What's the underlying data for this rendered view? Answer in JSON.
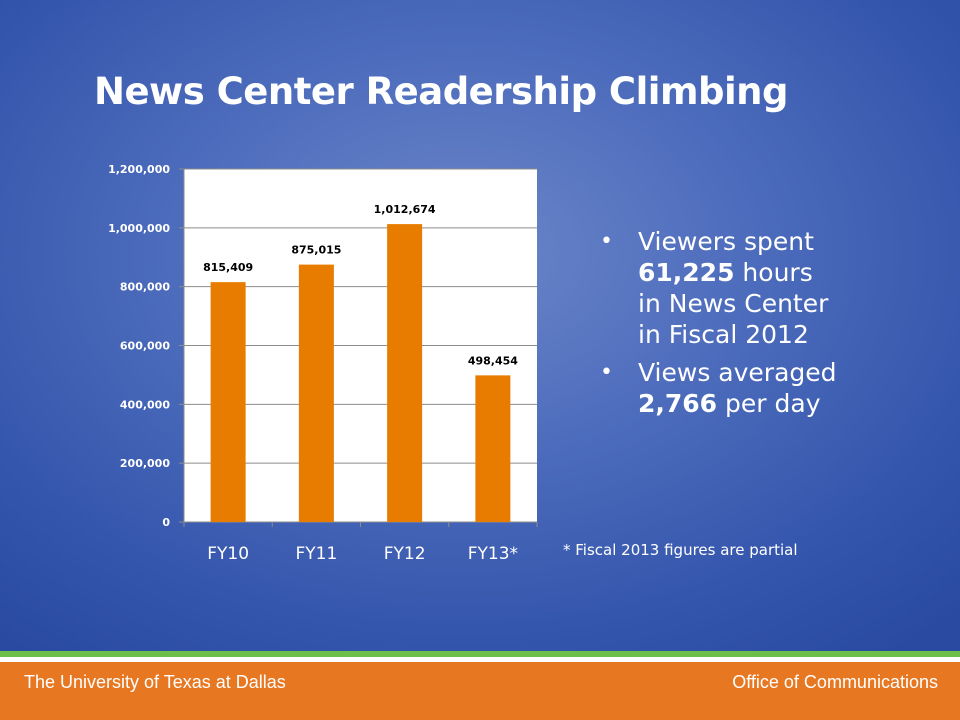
{
  "slide": {
    "title": "News Center Readership Climbing",
    "bullets": [
      {
        "lines": [
          [
            {
              "t": "Viewers spent",
              "b": false
            }
          ],
          [
            {
              "t": "61,225",
              "b": true
            },
            {
              "t": " hours",
              "b": false
            }
          ],
          [
            {
              "t": "in News Center",
              "b": false
            }
          ],
          [
            {
              "t": "in Fiscal 2012",
              "b": false
            }
          ]
        ]
      },
      {
        "lines": [
          [
            {
              "t": "Views averaged",
              "b": false
            }
          ],
          [
            {
              "t": "2,766",
              "b": true
            },
            {
              "t": " per day",
              "b": false
            }
          ]
        ]
      }
    ],
    "footnote": "* Fiscal 2013 figures are partial"
  },
  "footer": {
    "left": "The University of Texas at Dallas",
    "right": "Office of Communications"
  },
  "colors": {
    "bar": "#e87c00",
    "footer": "#e87722",
    "accent_green": "#6cc04a"
  },
  "chart_data": {
    "type": "bar",
    "categories": [
      "FY10",
      "FY11",
      "FY12",
      "FY13*"
    ],
    "values": [
      815409,
      875015,
      1012674,
      498454
    ],
    "value_labels": [
      "815,409",
      "875,015",
      "1,012,674",
      "498,454"
    ],
    "ylim": [
      0,
      1200000
    ],
    "yticks": [
      0,
      200000,
      400000,
      600000,
      800000,
      1000000,
      1200000
    ],
    "ytick_labels": [
      "0",
      "200,000",
      "400,000",
      "600,000",
      "800,000",
      "1,000,000",
      "1,200,000"
    ],
    "grid": true,
    "title": "",
    "xlabel": "",
    "ylabel": ""
  }
}
